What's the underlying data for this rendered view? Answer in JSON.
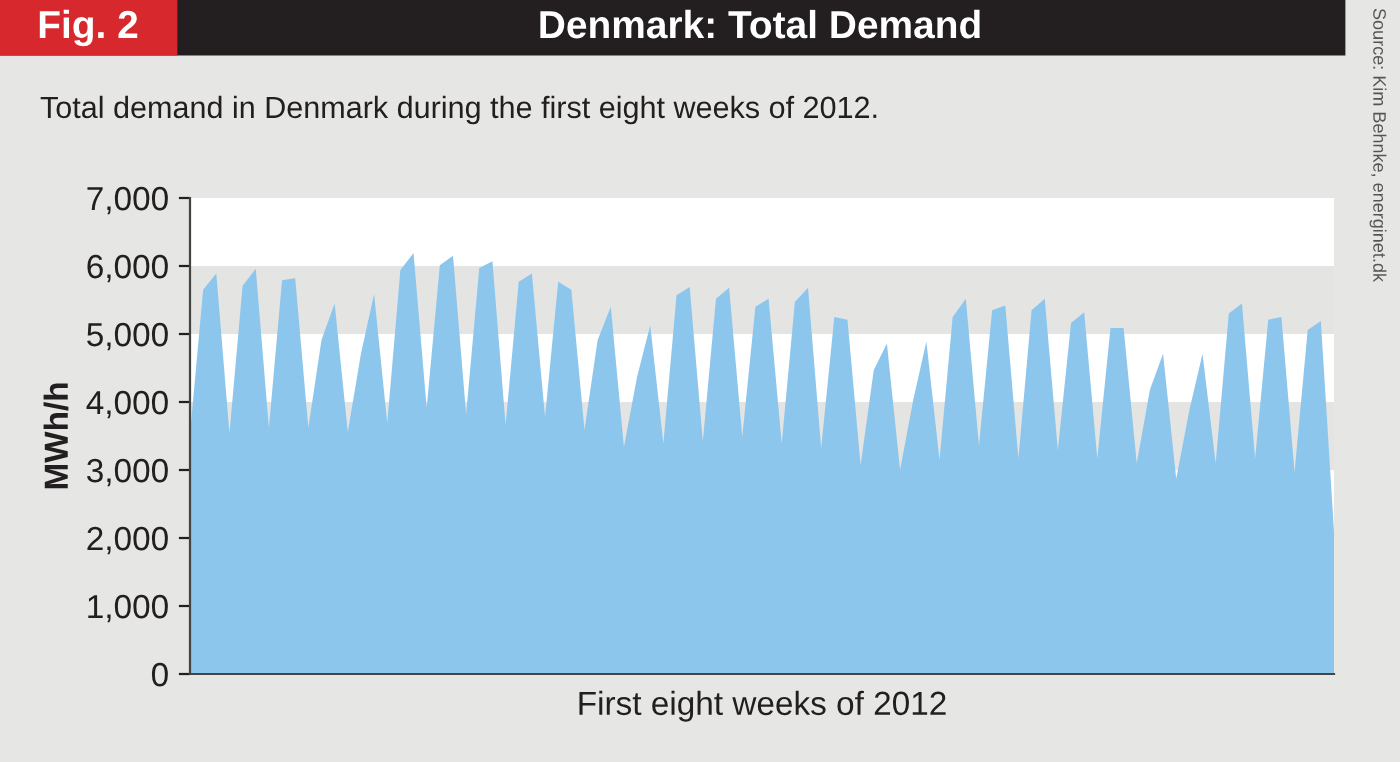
{
  "chart_data": {
    "type": "area",
    "title": "Denmark: Total Demand",
    "subtitle": "Total demand in Denmark during the first eight weeks of 2012.",
    "xlabel": "First eight weeks of 2012",
    "ylabel": "MWh/h",
    "annotations": [
      "Fig. 2",
      "Source: Kim Behnke, energinet.dk"
    ],
    "categories": [
      null,
      null,
      null,
      null,
      null,
      null,
      null,
      null,
      null,
      null,
      null,
      null,
      null,
      null,
      null,
      null,
      null,
      null,
      null,
      null,
      null,
      null,
      null,
      null,
      null,
      null,
      null,
      null,
      null,
      null,
      null,
      null,
      null,
      null,
      null,
      null,
      null,
      null,
      null,
      null,
      null,
      null,
      null,
      null,
      null,
      null,
      null,
      null,
      null,
      null,
      null,
      null,
      null,
      null,
      null,
      null,
      null,
      null,
      null,
      null,
      null,
      null,
      null,
      null,
      null,
      null,
      null,
      null,
      null,
      null,
      null,
      null,
      null,
      null,
      null,
      null,
      null,
      null,
      null,
      null,
      null,
      null,
      null,
      null,
      null,
      null,
      null,
      null
    ],
    "series": [
      {
        "color": "#8cc6ec",
        "values": [
          3530,
          5650,
          5890,
          3540,
          5710,
          5960,
          3620,
          5790,
          5820,
          3620,
          4910,
          5450,
          3560,
          4710,
          5590,
          3690,
          5940,
          6190,
          3910,
          6010,
          6150,
          3820,
          5970,
          6070,
          3660,
          5770,
          5890,
          3780,
          5770,
          5650,
          3590,
          4910,
          5400,
          3340,
          4370,
          5130,
          3390,
          5570,
          5690,
          3420,
          5520,
          5680,
          3490,
          5400,
          5520,
          3390,
          5470,
          5680,
          3320,
          5250,
          5210,
          3070,
          4470,
          4860,
          3000,
          4030,
          4890,
          3150,
          5250,
          5520,
          3360,
          5350,
          5420,
          3170,
          5350,
          5520,
          3290,
          5160,
          5320,
          3170,
          5090,
          5090,
          3100,
          4180,
          4710,
          2870,
          3880,
          4710,
          3100,
          5300,
          5450,
          3170,
          5210,
          5250,
          2970,
          5060,
          5190,
          2100
        ]
      }
    ],
    "ylim": [
      0,
      7000
    ],
    "yticks": [
      0,
      {
        "value": 1000,
        "label": "1,000"
      },
      {
        "value": 2000,
        "label": "2,000"
      },
      {
        "value": 3000,
        "label": "3,000"
      },
      {
        "value": 4000,
        "label": "4,000"
      },
      {
        "value": 5000,
        "label": "5,000"
      },
      {
        "value": 6000,
        "label": "6,000"
      },
      {
        "value": 7000,
        "label": "7,000"
      }
    ],
    "bands": [
      {
        "axis": "y",
        "from": 5000,
        "to": 6000,
        "color": "#e4e4e2"
      },
      {
        "axis": "y",
        "from": 3000,
        "to": 4000,
        "color": "#e4e4e2"
      }
    ],
    "tick_labels": "y",
    "legend": false
  }
}
